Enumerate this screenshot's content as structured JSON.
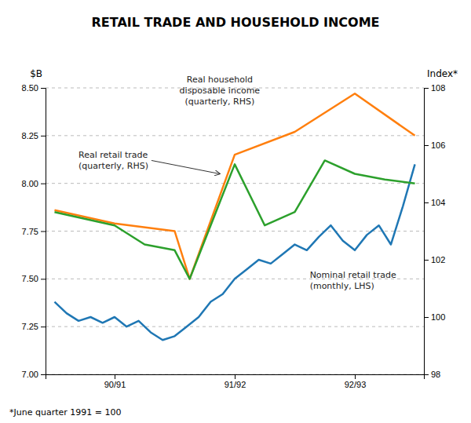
{
  "chart_data": {
    "type": "line",
    "title": "RETAIL TRADE AND HOUSEHOLD INCOME",
    "footnote": "*June quarter 1991 = 100",
    "ylabel": "$B",
    "y2label": "Index*",
    "xlim": [
      -0.3,
      12.3
    ],
    "xticks": [
      {
        "value": 2,
        "label": "90/91"
      },
      {
        "value": 6,
        "label": "91/92"
      },
      {
        "value": 10,
        "label": "92/93"
      }
    ],
    "ylim": [
      7.0,
      8.5
    ],
    "yticks": [
      {
        "value": 7.0,
        "label": "7.00"
      },
      7.25,
      {
        "value": 7.5,
        "label": "7.50"
      },
      7.75,
      {
        "value": 8.0,
        "label": "8.00"
      },
      8.25,
      {
        "value": 8.5,
        "label": "8.50"
      }
    ],
    "y2lim": [
      98,
      108
    ],
    "y2ticks": [
      98,
      100,
      102,
      104,
      106,
      108
    ],
    "grid": true,
    "series": [
      {
        "x": [
          0.0,
          0.4,
          0.8,
          1.2,
          1.6,
          2.0,
          2.4,
          2.8,
          3.2,
          3.6,
          4.0,
          4.4,
          4.8,
          5.2,
          5.6,
          6.0,
          6.4,
          6.8,
          7.2,
          7.6,
          8.0,
          8.4,
          8.8,
          9.2,
          9.6,
          10.0,
          10.4,
          10.8,
          11.2,
          11.6,
          12.0
        ],
        "values": [
          7.38,
          7.32,
          7.28,
          7.3,
          7.27,
          7.3,
          7.25,
          7.28,
          7.22,
          7.18,
          7.2,
          7.25,
          7.3,
          7.38,
          7.42,
          7.5,
          7.55,
          7.6,
          7.58,
          7.63,
          7.68,
          7.65,
          7.72,
          7.78,
          7.7,
          7.65,
          7.73,
          7.78,
          7.68,
          7.88,
          8.1
        ]
      },
      {
        "x": [
          0,
          2,
          4,
          4.5,
          6,
          8,
          10,
          12
        ],
        "values": [
          7.86,
          7.79,
          7.75,
          7.5,
          8.15,
          8.27,
          8.47,
          8.25
        ]
      },
      {
        "x": [
          0,
          2,
          3,
          4,
          4.5,
          6,
          7,
          8,
          9,
          10,
          11,
          12
        ],
        "values": [
          7.85,
          7.78,
          7.68,
          7.65,
          7.5,
          8.1,
          7.78,
          7.85,
          8.12,
          8.05,
          8.02,
          8.0
        ]
      }
    ],
    "annotations": [
      {
        "text": "Real retail trade\n(quarterly, RHS)",
        "x": 0.8,
        "y": 8.12,
        "xy": [
          5.5,
          8.05
        ]
      },
      {
        "text": "Real household\ndisposable income\n(quarterly, RHS)",
        "x": 5.5,
        "y": 8.4
      },
      {
        "text": "Nominal retail trade\n(monthly, LHS)",
        "x": 8.5,
        "y": 7.55
      }
    ]
  }
}
